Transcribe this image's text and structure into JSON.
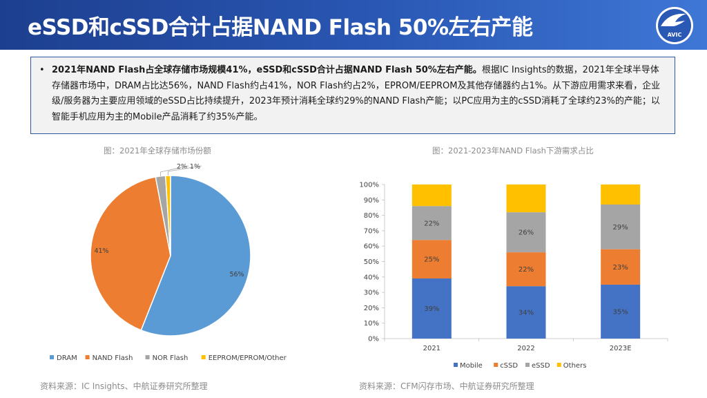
{
  "header": {
    "title": "eSSD和cSSD合计占据NAND Flash 50%左右产能",
    "logo_text": "AVIC",
    "logo_icon": "avic-logo-icon"
  },
  "summary": {
    "bold": "2021年NAND Flash占全球存储市场规模41%，eSSD和cSSD合计占据NAND Flash 50%左右产能。",
    "text": "根据IC Insights的数据，2021年全球半导体存储器市场中，DRAM占比达56%，NAND Flash约占41%，NOR Flash约占2%，EPROM/EEPROM及其他存储器约占1%。从下游应用需求来看，企业级/服务器为主要应用领域的eSSD占比持续提升，2023年预计消耗全球约29%的NAND Flash产能；以PC应用为主的cSSD消耗了全球约23%的产能；以智能手机应用为主的Mobile产品消耗了约35%产能。"
  },
  "left": {
    "caption": "图：2021年全球存储市场份额",
    "source": "资料来源：IC Insights、中航证券研究所整理"
  },
  "right": {
    "caption": "图：2021-2023年NAND Flash下游需求占比",
    "source": "资料来源：CFM闪存市场、中航证券研究所整理"
  },
  "chart_data": [
    {
      "type": "pie",
      "title": "图：2021年全球存储市场份额",
      "slices": [
        {
          "label": "DRAM",
          "value": 56,
          "display": "56%",
          "color": "#5b9bd5"
        },
        {
          "label": "NAND Flash",
          "value": 41,
          "display": "41%",
          "color": "#ed7d31"
        },
        {
          "label": "NOR Flash",
          "value": 2,
          "display": "2%",
          "color": "#a5a5a5"
        },
        {
          "label": "EEPROM/EPROM/Other",
          "value": 1,
          "display": "1%",
          "color": "#ffc000"
        }
      ],
      "legend": "bottom"
    },
    {
      "type": "bar",
      "stacked": true,
      "title": "图：2021-2023年NAND Flash下游需求占比",
      "categories": [
        "2021",
        "2022",
        "2023E"
      ],
      "series": [
        {
          "name": "Mobile",
          "color": "#4472c4",
          "values": [
            39,
            34,
            35
          ],
          "labels": [
            "39%",
            "34%",
            "35%"
          ]
        },
        {
          "name": "cSSD",
          "color": "#ed7d31",
          "values": [
            25,
            22,
            23
          ],
          "labels": [
            "25%",
            "22%",
            "23%"
          ]
        },
        {
          "name": "eSSD",
          "color": "#a5a5a5",
          "values": [
            22,
            26,
            29
          ],
          "labels": [
            "22%",
            "26%",
            "29%"
          ]
        },
        {
          "name": "Others",
          "color": "#ffc000",
          "values": [
            14,
            18,
            13
          ],
          "labels": [
            "",
            "",
            ""
          ]
        }
      ],
      "ylim": [
        0,
        100
      ],
      "yticks": [
        "0%",
        "10%",
        "20%",
        "30%",
        "40%",
        "50%",
        "60%",
        "70%",
        "80%",
        "90%",
        "100%"
      ],
      "legend": "bottom"
    }
  ]
}
